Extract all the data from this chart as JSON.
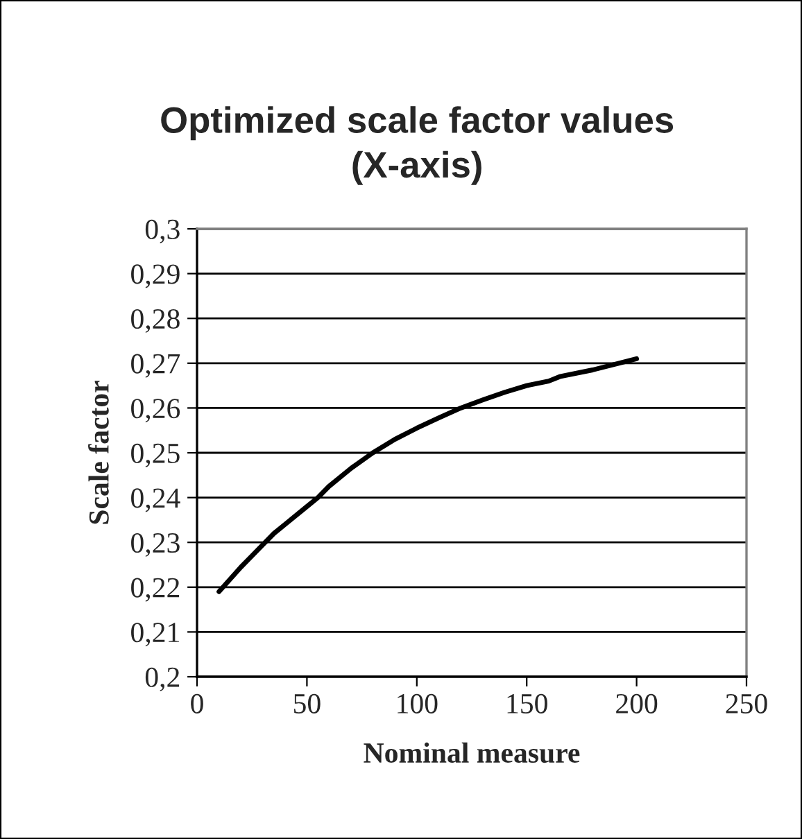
{
  "chart_data": {
    "type": "line",
    "title": "Optimized scale factor values\n(X-axis)",
    "xlabel": "Nominal measure",
    "ylabel": "Scale factor",
    "series": [
      {
        "color": "#000000",
        "x": [
          10,
          20,
          25,
          30,
          35,
          40,
          50,
          55,
          60,
          70,
          80,
          90,
          100,
          110,
          120,
          130,
          140,
          150,
          160,
          165,
          180,
          200
        ],
        "values": [
          0.219,
          0.2245,
          0.227,
          0.2295,
          0.232,
          0.234,
          0.238,
          0.24,
          0.2425,
          0.2465,
          0.25,
          0.253,
          0.2555,
          0.2578,
          0.26,
          0.2618,
          0.2635,
          0.265,
          0.266,
          0.267,
          0.2685,
          0.271
        ]
      }
    ],
    "xlim": [
      0,
      250
    ],
    "xticks": [
      0,
      50,
      100,
      150,
      200,
      250
    ],
    "ylim": [
      0.2,
      0.3
    ],
    "yticks": [
      {
        "value": 0.2,
        "label": "0,2"
      },
      {
        "value": 0.21,
        "label": "0,21"
      },
      {
        "value": 0.22,
        "label": "0,22"
      },
      {
        "value": 0.23,
        "label": "0,23"
      },
      {
        "value": 0.24,
        "label": "0,24"
      },
      {
        "value": 0.25,
        "label": "0,25"
      },
      {
        "value": 0.26,
        "label": "0,26"
      },
      {
        "value": 0.27,
        "label": "0,27"
      },
      {
        "value": 0.28,
        "label": "0,28"
      },
      {
        "value": 0.29,
        "label": "0,29"
      },
      {
        "value": 0.3,
        "label": "0,3"
      }
    ],
    "grid": "y",
    "marker": "none",
    "line_style": "solid"
  }
}
